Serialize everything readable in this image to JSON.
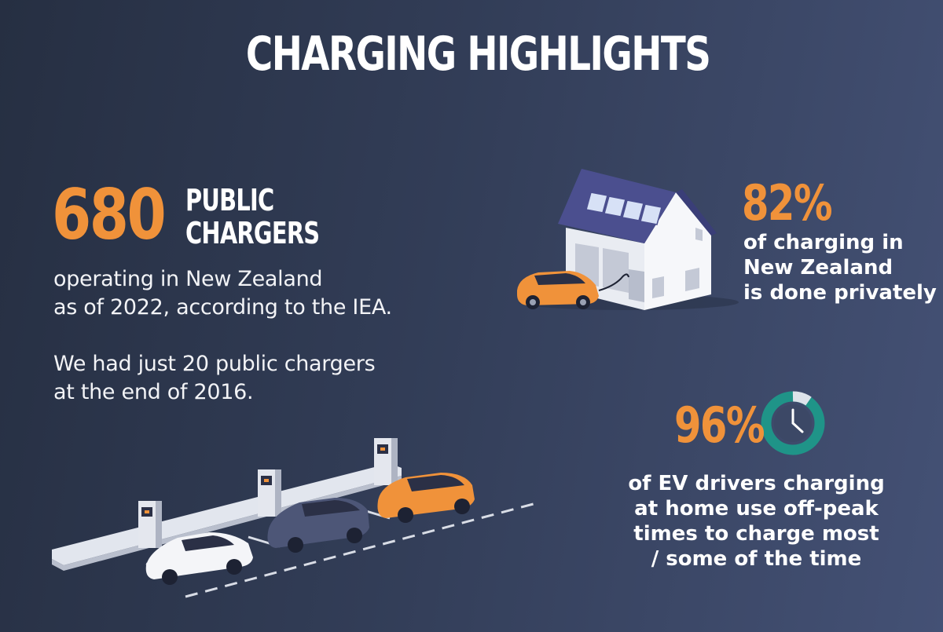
{
  "title": "CHARGING HIGHLIGHTS",
  "public_chargers": {
    "number": "680",
    "label_line1": "PUBLIC",
    "label_line2": "CHARGERS",
    "description_line1": "operating in New Zealand",
    "description_line2": "as of 2022, according to the IEA.",
    "note_line1": "We had just 20 public chargers",
    "note_line2": "at the end of 2016."
  },
  "private_charging": {
    "percent": "82%",
    "line1": "of charging in",
    "line2": "New Zealand",
    "line3": "is done privately"
  },
  "off_peak": {
    "percent": "96%",
    "line1": "of EV drivers charging",
    "line2": "at home use off-peak",
    "line3": "times to charge most",
    "line4": "/ some of the time"
  },
  "icons": {
    "house": "house-with-solar-panels-icon",
    "clock": "clock-icon",
    "parking": "ev-charging-station-illustration"
  },
  "colors": {
    "accent": "#f0923a",
    "teal": "#1f9488",
    "background": "#323d57"
  }
}
